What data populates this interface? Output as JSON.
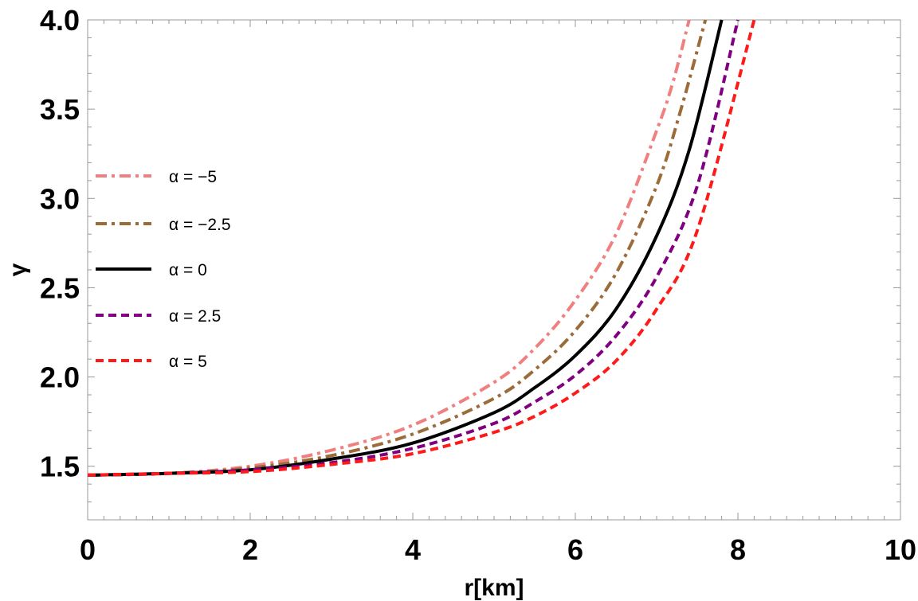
{
  "chart_data": {
    "type": "line",
    "xlabel": "r[km]",
    "ylabel": "γ",
    "xlim": [
      0,
      10
    ],
    "ylim": [
      1.2,
      4.0
    ],
    "xticks": [
      "0",
      "2",
      "4",
      "6",
      "8",
      "10"
    ],
    "yticks": [
      "1.5",
      "2.0",
      "2.5",
      "3.0",
      "3.5",
      "4.0"
    ],
    "grid": false,
    "legend_position": "left",
    "series": [
      {
        "name": "α = −5",
        "color": "#f08080",
        "style": "dash-dot",
        "x": [
          0,
          1,
          2,
          3,
          4,
          5,
          5.5,
          6,
          6.5,
          7,
          7.2,
          7.4
        ],
        "y": [
          1.45,
          1.46,
          1.5,
          1.59,
          1.73,
          1.97,
          2.16,
          2.43,
          2.8,
          3.38,
          3.65,
          4.0
        ]
      },
      {
        "name": "α = −2.5",
        "color": "#9b6b3a",
        "style": "dash-dot",
        "x": [
          0,
          1,
          2,
          3,
          4,
          5,
          5.5,
          6,
          6.5,
          7,
          7.3,
          7.6
        ],
        "y": [
          1.45,
          1.46,
          1.49,
          1.56,
          1.68,
          1.88,
          2.04,
          2.26,
          2.58,
          3.07,
          3.5,
          4.0
        ]
      },
      {
        "name": "α = 0",
        "color": "#000000",
        "style": "solid",
        "x": [
          0,
          1,
          2,
          3,
          4,
          5,
          5.5,
          6,
          6.5,
          7,
          7.4,
          7.8
        ],
        "y": [
          1.45,
          1.46,
          1.48,
          1.54,
          1.63,
          1.8,
          1.94,
          2.12,
          2.38,
          2.79,
          3.27,
          4.0
        ]
      },
      {
        "name": "α = 2.5",
        "color": "#800080",
        "style": "dashed",
        "x": [
          0,
          1,
          2,
          3,
          4,
          5,
          5.5,
          6,
          6.5,
          7,
          7.5,
          8.0
        ],
        "y": [
          1.45,
          1.46,
          1.48,
          1.52,
          1.6,
          1.74,
          1.86,
          2.01,
          2.23,
          2.56,
          3.07,
          4.0
        ]
      },
      {
        "name": "α = 5",
        "color": "#ff1a1a",
        "style": "dashed",
        "x": [
          0,
          1,
          2,
          3,
          4,
          5,
          5.5,
          6,
          6.5,
          7,
          7.5,
          8.2
        ],
        "y": [
          1.45,
          1.46,
          1.47,
          1.51,
          1.57,
          1.69,
          1.78,
          1.91,
          2.09,
          2.38,
          2.82,
          4.0
        ]
      }
    ]
  }
}
